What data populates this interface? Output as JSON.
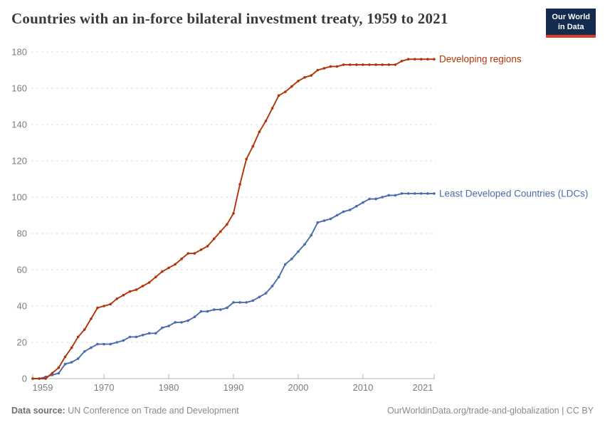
{
  "header": {
    "title": "Countries with an in-force bilateral investment treaty, 1959 to 2021",
    "logo": {
      "line1": "Our World",
      "line2": "in Data",
      "bg_color": "#122B4E",
      "accent_color": "#DA3C28"
    }
  },
  "chart_data": {
    "type": "line",
    "title": "Countries with an in-force bilateral investment treaty, 1959 to 2021",
    "xlabel": "",
    "ylabel": "",
    "x": [
      1959,
      1960,
      1961,
      1962,
      1963,
      1964,
      1965,
      1966,
      1967,
      1968,
      1969,
      1970,
      1971,
      1972,
      1973,
      1974,
      1975,
      1976,
      1977,
      1978,
      1979,
      1980,
      1981,
      1982,
      1983,
      1984,
      1985,
      1986,
      1987,
      1988,
      1989,
      1990,
      1991,
      1992,
      1993,
      1994,
      1995,
      1996,
      1997,
      1998,
      1999,
      2000,
      2001,
      2002,
      2003,
      2004,
      2005,
      2006,
      2007,
      2008,
      2009,
      2010,
      2011,
      2012,
      2013,
      2014,
      2015,
      2016,
      2017,
      2018,
      2019,
      2020,
      2021
    ],
    "series": [
      {
        "name": "Developing regions",
        "color": "#B13507",
        "values": [
          0,
          0,
          0,
          3,
          6,
          12,
          17,
          23,
          27,
          33,
          39,
          40,
          41,
          44,
          46,
          48,
          49,
          51,
          53,
          56,
          59,
          61,
          63,
          66,
          69,
          69,
          71,
          73,
          77,
          81,
          85,
          91,
          107,
          121,
          128,
          136,
          142,
          149,
          156,
          158,
          161,
          164,
          166,
          167,
          170,
          171,
          172,
          172,
          173,
          173,
          173,
          173,
          173,
          173,
          173,
          173,
          173,
          175,
          176,
          176,
          176,
          176,
          176
        ]
      },
      {
        "name": "Least Developed Countries (LDCs)",
        "color": "#4C6BAE",
        "values": [
          0,
          0,
          1,
          2,
          3,
          8,
          9,
          11,
          15,
          17,
          19,
          19,
          19,
          20,
          21,
          23,
          23,
          24,
          25,
          25,
          28,
          29,
          31,
          31,
          32,
          34,
          37,
          37,
          38,
          38,
          39,
          42,
          42,
          42,
          43,
          45,
          47,
          51,
          56,
          63,
          66,
          70,
          74,
          79,
          86,
          87,
          88,
          90,
          92,
          93,
          95,
          97,
          99,
          99,
          100,
          101,
          101,
          102,
          102,
          102,
          102,
          102,
          102
        ]
      }
    ],
    "ylim": [
      0,
      180
    ],
    "yticks": [
      0,
      20,
      40,
      60,
      80,
      100,
      120,
      140,
      160,
      180
    ],
    "xticks": [
      1959,
      1970,
      1980,
      1990,
      2000,
      2010,
      2021
    ],
    "grid": "horizontal-dashed",
    "legend_position": "end-of-line",
    "colors": {
      "grid": "#dcdcdc",
      "axis": "#b3b3b3",
      "tick_label": "#7d7d7d"
    }
  },
  "footer": {
    "datasource_label": "Data source:",
    "datasource_value": " UN Conference on Trade and Development",
    "right_text": "OurWorldinData.org/trade-and-globalization | CC BY"
  }
}
